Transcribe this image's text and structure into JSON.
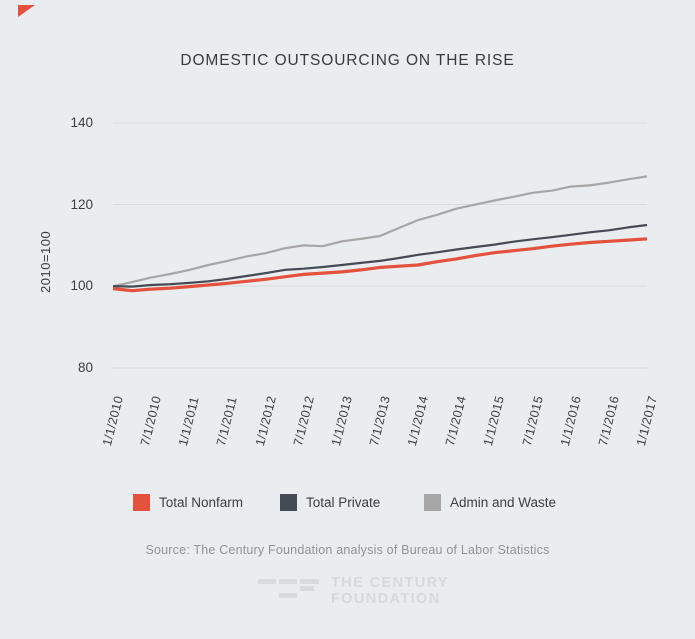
{
  "page": {
    "title": "DOMESTIC OUTSOURCING ON THE RISE",
    "source_note": "Source: The Century Foundation analysis of Bureau of Labor Statistics"
  },
  "logo": {
    "line1": "THE CENTURY",
    "line2": "FOUNDATION"
  },
  "colors": {
    "background": "#eaedef",
    "gridline": "#d8dbdd",
    "accent_red": "#e4513c",
    "dark_slate": "#454b55",
    "light_gray": "#a6a6a7",
    "text": "#3a3a3a",
    "muted_text": "#8f9497",
    "logo_gray": "#d8dbdc"
  },
  "chart_data": {
    "type": "line",
    "title": "DOMESTIC OUTSOURCING ON THE RISE",
    "xlabel": "",
    "ylabel": "2010=100",
    "grid": "horizontal",
    "legend_position": "bottom",
    "y_ticks": [
      140,
      120,
      100,
      80
    ],
    "ylim": [
      76,
      144
    ],
    "x_start": "1/1/2010",
    "x_end": "1/1/2017",
    "x_interval_months": 3,
    "x_tick_labels": [
      "1/1/2010",
      "7/1/2010",
      "1/1/2011",
      "7/1/2011",
      "1/1/2012",
      "7/1/2012",
      "1/1/2013",
      "7/1/2013",
      "1/1/2014",
      "7/1/2014",
      "1/1/2015",
      "7/1/2015",
      "1/1/2016",
      "7/1/2016",
      "1/1/2017"
    ],
    "series": [
      {
        "name": "Admin and Waste",
        "color": "#a6a6a7",
        "line_width": 2.2,
        "values": [
          100.0,
          101.0,
          102.1,
          103.0,
          104.0,
          105.2,
          106.2,
          107.3,
          108.1,
          109.3,
          110.0,
          109.8,
          111.0,
          111.6,
          112.3,
          114.3,
          116.2,
          117.5,
          119.0,
          120.0,
          121.0,
          121.9,
          122.9,
          123.4,
          124.4,
          124.7,
          125.4,
          126.2,
          126.9
        ]
      },
      {
        "name": "Total Private",
        "color": "#454b55",
        "line_width": 2.2,
        "values": [
          100.0,
          99.9,
          100.3,
          100.5,
          100.8,
          101.2,
          101.8,
          102.5,
          103.2,
          104.0,
          104.3,
          104.7,
          105.2,
          105.7,
          106.2,
          106.9,
          107.7,
          108.3,
          109.0,
          109.6,
          110.2,
          110.9,
          111.5,
          112.0,
          112.6,
          113.2,
          113.7,
          114.4,
          115.0
        ]
      },
      {
        "name": "Total Nonfarm",
        "color": "#e4513c",
        "line_width": 3.2,
        "values": [
          99.4,
          98.9,
          99.3,
          99.5,
          99.9,
          100.3,
          100.7,
          101.2,
          101.7,
          102.3,
          102.9,
          103.2,
          103.5,
          104.0,
          104.6,
          104.9,
          105.2,
          106.0,
          106.7,
          107.5,
          108.2,
          108.7,
          109.2,
          109.8,
          110.3,
          110.7,
          111.0,
          111.3,
          111.6
        ]
      }
    ],
    "legend_order": [
      "Total Nonfarm",
      "Total Private",
      "Admin and Waste"
    ]
  }
}
